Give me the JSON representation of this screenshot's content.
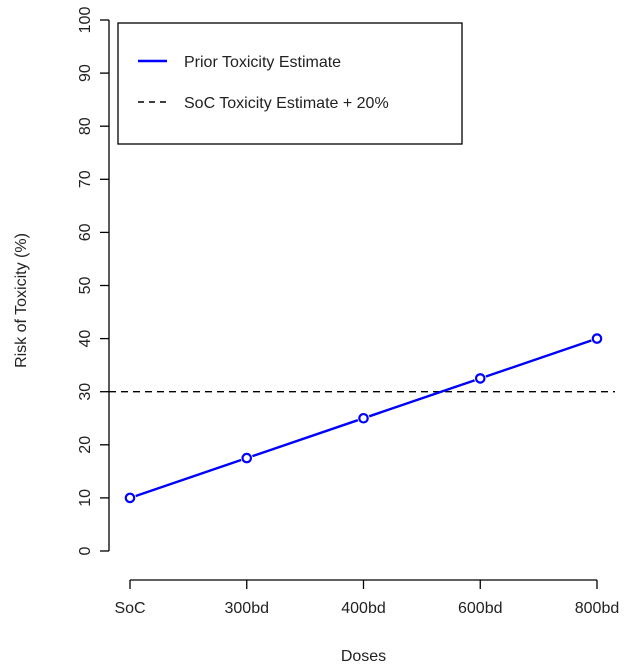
{
  "chart_data": {
    "type": "line",
    "title": "",
    "xlabel": "Doses",
    "ylabel": "Risk of Toxicity (%)",
    "categories": [
      "SoC",
      "300bd",
      "400bd",
      "600bd",
      "800bd"
    ],
    "ylim": [
      0,
      100
    ],
    "yticks": [
      0,
      10,
      20,
      30,
      40,
      50,
      60,
      70,
      80,
      90,
      100
    ],
    "series": [
      {
        "name": "Prior Toxicity Estimate",
        "values": [
          10,
          17.5,
          25,
          32.5,
          40
        ],
        "color": "#0000ff",
        "style": "solid",
        "markers": "open-circle"
      }
    ],
    "reference_lines": [
      {
        "name": "SoC Toxicity Estimate + 20%",
        "y": 30,
        "color": "#000000",
        "style": "dashed"
      }
    ],
    "legend_position": "top-left",
    "grid": false
  }
}
